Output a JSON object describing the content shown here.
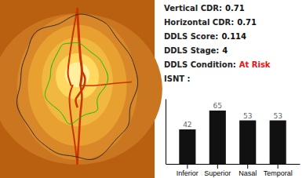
{
  "chart_data": {
    "type": "bar",
    "annotations": [
      {
        "label": "Vertical CDR:",
        "value": "0.71"
      },
      {
        "label": "Horizontal CDR:",
        "value": "0.71"
      },
      {
        "label": "DDLS Score:",
        "value": "0.114"
      },
      {
        "label": "DDLS Stage:",
        "value": "4"
      },
      {
        "label": "DDLS Condition:",
        "value": "At Risk",
        "color": "#ee1111"
      },
      {
        "label": "ISNT :"
      }
    ],
    "categories": [
      "Inferior",
      "Superior",
      "Nasal",
      "Temporal"
    ],
    "values": [
      42,
      65,
      53,
      53
    ],
    "color": "#111111",
    "ylim": [
      0,
      79.3
    ],
    "data_labels": true,
    "tick_labels": "x",
    "grid": false
  }
}
